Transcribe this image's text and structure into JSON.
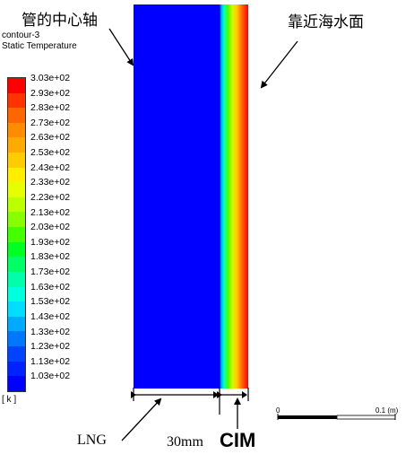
{
  "contour": {
    "name": "contour-3",
    "variable": "Static Temperature",
    "unit": "[ k ]"
  },
  "legend": {
    "labels": [
      "3.03e+02",
      "2.93e+02",
      "2.83e+02",
      "2.73e+02",
      "2.63e+02",
      "2.53e+02",
      "2.43e+02",
      "2.33e+02",
      "2.23e+02",
      "2.13e+02",
      "2.03e+02",
      "1.93e+02",
      "1.83e+02",
      "1.73e+02",
      "1.63e+02",
      "1.53e+02",
      "1.43e+02",
      "1.33e+02",
      "1.23e+02",
      "1.13e+02",
      "1.03e+02"
    ],
    "colors": [
      "#ff0000",
      "#ff3300",
      "#ff6600",
      "#ff8c00",
      "#ffaa00",
      "#ffcc00",
      "#ffee00",
      "#e6ff00",
      "#bbff00",
      "#88ff00",
      "#44ff00",
      "#00ff22",
      "#00ff66",
      "#00ffaa",
      "#00ffdd",
      "#00ddff",
      "#00aaff",
      "#0077ff",
      "#0044ff",
      "#0022ff",
      "#0000ff"
    ]
  },
  "annotations": {
    "pipe_axis": "管的中心轴",
    "near_sea": "靠近海水面",
    "lng": "LNG",
    "thickness": "30mm",
    "cim": "CIM"
  },
  "scale": {
    "min": "0",
    "max": "0.1 (m)"
  }
}
